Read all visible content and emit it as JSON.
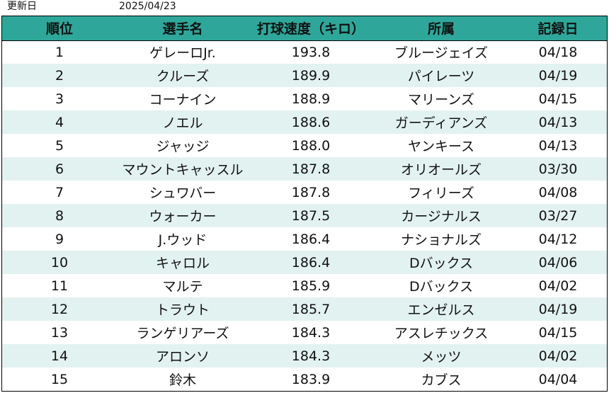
{
  "update": {
    "label": "更新日",
    "date": "2025/04/23"
  },
  "table": {
    "headers": [
      "順位",
      "選手名",
      "打球速度（キロ）",
      "所属",
      "記録日"
    ],
    "rows": [
      {
        "rank": "1",
        "name": "ゲレーロJr.",
        "speed": "193.8",
        "team": "ブルージェイズ",
        "date": "04/18"
      },
      {
        "rank": "2",
        "name": "クルーズ",
        "speed": "189.9",
        "team": "パイレーツ",
        "date": "04/19"
      },
      {
        "rank": "3",
        "name": "コーナイン",
        "speed": "188.9",
        "team": "マリーンズ",
        "date": "04/15"
      },
      {
        "rank": "4",
        "name": "ノエル",
        "speed": "188.6",
        "team": "ガーディアンズ",
        "date": "04/13"
      },
      {
        "rank": "5",
        "name": "ジャッジ",
        "speed": "188.0",
        "team": "ヤンキース",
        "date": "04/13"
      },
      {
        "rank": "6",
        "name": "マウントキャッスル",
        "speed": "187.8",
        "team": "オリオールズ",
        "date": "03/30"
      },
      {
        "rank": "7",
        "name": "シュワバー",
        "speed": "187.8",
        "team": "フィリーズ",
        "date": "04/08"
      },
      {
        "rank": "8",
        "name": "ウォーカー",
        "speed": "187.5",
        "team": "カージナルス",
        "date": "03/27"
      },
      {
        "rank": "9",
        "name": "J.ウッド",
        "speed": "186.4",
        "team": "ナショナルズ",
        "date": "04/12"
      },
      {
        "rank": "10",
        "name": "キャロル",
        "speed": "186.4",
        "team": "Dバックス",
        "date": "04/06"
      },
      {
        "rank": "11",
        "name": "マルテ",
        "speed": "185.9",
        "team": "Dバックス",
        "date": "04/02"
      },
      {
        "rank": "12",
        "name": "トラウト",
        "speed": "185.7",
        "team": "エンゼルス",
        "date": "04/19"
      },
      {
        "rank": "13",
        "name": "ランゲリアーズ",
        "speed": "184.3",
        "team": "アスレチックス",
        "date": "04/15"
      },
      {
        "rank": "14",
        "name": "アロンソ",
        "speed": "184.3",
        "team": "メッツ",
        "date": "04/02"
      },
      {
        "rank": "15",
        "name": "鈴木",
        "speed": "183.9",
        "team": "カブス",
        "date": "04/04"
      }
    ]
  },
  "colors": {
    "header_bg": "#2ea79a",
    "row_alt_bg": "#e2f2f0",
    "row_bg": "#ffffff",
    "border": "#000000"
  }
}
